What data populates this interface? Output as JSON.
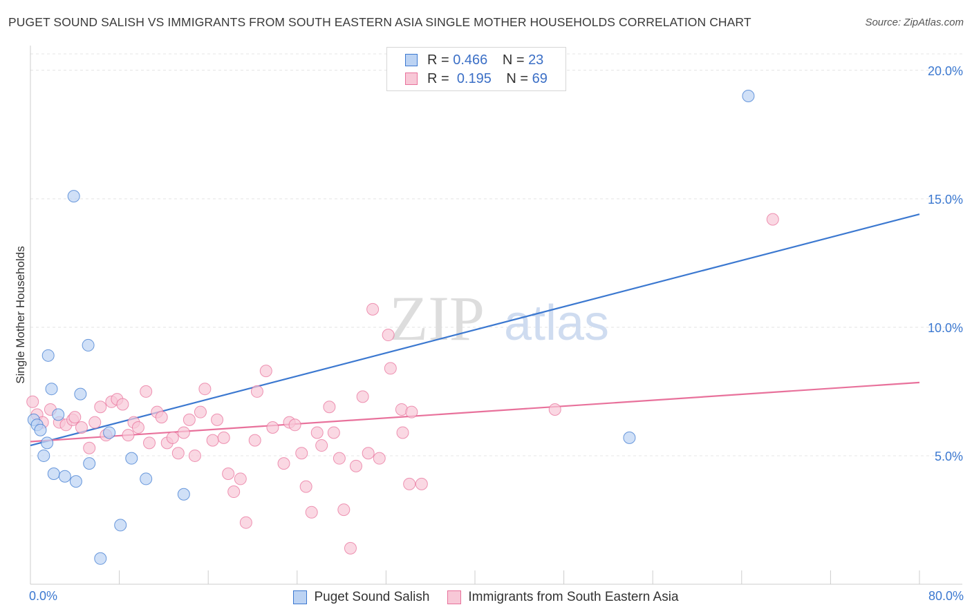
{
  "header": {
    "title": "PUGET SOUND SALISH VS IMMIGRANTS FROM SOUTH EASTERN ASIA SINGLE MOTHER HOUSEHOLDS CORRELATION CHART",
    "source": "Source: ZipAtlas.com"
  },
  "watermark": {
    "zip": "ZIP",
    "atlas": "atlas"
  },
  "legend": {
    "rows": [
      {
        "r_label": "R =",
        "r_value": "0.466",
        "n_label": "N =",
        "n_value": "23"
      },
      {
        "r_label": "R =",
        "r_value": "0.195",
        "n_label": "N =",
        "n_value": "69"
      }
    ]
  },
  "chart_data": {
    "type": "scatter",
    "title": "PUGET SOUND SALISH VS IMMIGRANTS FROM SOUTH EASTERN ASIA SINGLE MOTHER HOUSEHOLDS CORRELATION CHART",
    "xlabel": "",
    "ylabel": "Single Mother Households",
    "xlim": [
      0,
      80
    ],
    "ylim": [
      0,
      20.8
    ],
    "x_tick_labels": [
      "0.0%",
      "80.0%"
    ],
    "y_ticks": [
      5,
      10,
      15,
      20
    ],
    "y_tick_labels": [
      "5.0%",
      "10.0%",
      "15.0%",
      "20.0%"
    ],
    "grid": true,
    "legend_position": "top-center",
    "colors": {
      "blue": "#3b78d0",
      "pink": "#e8719b"
    },
    "series": [
      {
        "name": "Puget Sound Salish",
        "color": "#3b78d0",
        "fill": "#bcd3f3",
        "trend": {
          "x": [
            0,
            80
          ],
          "y": [
            5.4,
            14.4
          ]
        },
        "points": [
          {
            "x": 0.3,
            "y": 6.4
          },
          {
            "x": 0.6,
            "y": 6.2
          },
          {
            "x": 0.9,
            "y": 6.0
          },
          {
            "x": 1.2,
            "y": 5.0
          },
          {
            "x": 1.5,
            "y": 5.5
          },
          {
            "x": 1.6,
            "y": 8.9
          },
          {
            "x": 1.9,
            "y": 7.6
          },
          {
            "x": 2.1,
            "y": 4.3
          },
          {
            "x": 2.5,
            "y": 6.6
          },
          {
            "x": 3.1,
            "y": 4.2
          },
          {
            "x": 3.9,
            "y": 15.1
          },
          {
            "x": 4.1,
            "y": 4.0
          },
          {
            "x": 4.5,
            "y": 7.4
          },
          {
            "x": 5.2,
            "y": 9.3
          },
          {
            "x": 5.3,
            "y": 4.7
          },
          {
            "x": 6.3,
            "y": 1.0
          },
          {
            "x": 7.1,
            "y": 5.9
          },
          {
            "x": 8.1,
            "y": 2.3
          },
          {
            "x": 9.1,
            "y": 4.9
          },
          {
            "x": 10.4,
            "y": 4.1
          },
          {
            "x": 13.8,
            "y": 3.5
          },
          {
            "x": 53.9,
            "y": 5.7
          },
          {
            "x": 64.6,
            "y": 19.0
          }
        ]
      },
      {
        "name": "Immigrants from South Eastern Asia",
        "color": "#e8719b",
        "fill": "#f8c8d7",
        "trend": {
          "x": [
            0,
            80
          ],
          "y": [
            5.55,
            7.85
          ]
        },
        "points": [
          {
            "x": 0.2,
            "y": 7.1
          },
          {
            "x": 0.6,
            "y": 6.6
          },
          {
            "x": 1.1,
            "y": 6.3
          },
          {
            "x": 1.8,
            "y": 6.8
          },
          {
            "x": 2.6,
            "y": 6.3
          },
          {
            "x": 3.2,
            "y": 6.2
          },
          {
            "x": 3.8,
            "y": 6.4
          },
          {
            "x": 4.0,
            "y": 6.5
          },
          {
            "x": 4.6,
            "y": 6.1
          },
          {
            "x": 5.3,
            "y": 5.3
          },
          {
            "x": 5.8,
            "y": 6.3
          },
          {
            "x": 6.3,
            "y": 6.9
          },
          {
            "x": 6.8,
            "y": 5.8
          },
          {
            "x": 7.3,
            "y": 7.1
          },
          {
            "x": 7.8,
            "y": 7.2
          },
          {
            "x": 8.3,
            "y": 7.0
          },
          {
            "x": 8.8,
            "y": 5.8
          },
          {
            "x": 9.3,
            "y": 6.3
          },
          {
            "x": 9.7,
            "y": 6.1
          },
          {
            "x": 10.4,
            "y": 7.5
          },
          {
            "x": 10.7,
            "y": 5.5
          },
          {
            "x": 11.4,
            "y": 6.7
          },
          {
            "x": 11.8,
            "y": 6.5
          },
          {
            "x": 12.3,
            "y": 5.5
          },
          {
            "x": 12.8,
            "y": 5.7
          },
          {
            "x": 13.3,
            "y": 5.1
          },
          {
            "x": 13.8,
            "y": 5.9
          },
          {
            "x": 14.3,
            "y": 6.4
          },
          {
            "x": 14.8,
            "y": 5.0
          },
          {
            "x": 15.3,
            "y": 6.7
          },
          {
            "x": 15.7,
            "y": 7.6
          },
          {
            "x": 16.4,
            "y": 5.6
          },
          {
            "x": 16.8,
            "y": 6.4
          },
          {
            "x": 17.4,
            "y": 5.7
          },
          {
            "x": 17.8,
            "y": 4.3
          },
          {
            "x": 18.3,
            "y": 3.6
          },
          {
            "x": 18.9,
            "y": 4.1
          },
          {
            "x": 19.4,
            "y": 2.4
          },
          {
            "x": 20.2,
            "y": 5.6
          },
          {
            "x": 20.4,
            "y": 7.5
          },
          {
            "x": 21.2,
            "y": 8.3
          },
          {
            "x": 21.8,
            "y": 6.1
          },
          {
            "x": 22.8,
            "y": 4.7
          },
          {
            "x": 23.3,
            "y": 6.3
          },
          {
            "x": 23.8,
            "y": 6.2
          },
          {
            "x": 24.4,
            "y": 5.1
          },
          {
            "x": 24.8,
            "y": 3.8
          },
          {
            "x": 25.3,
            "y": 2.8
          },
          {
            "x": 25.8,
            "y": 5.9
          },
          {
            "x": 26.2,
            "y": 5.4
          },
          {
            "x": 26.9,
            "y": 6.9
          },
          {
            "x": 27.3,
            "y": 5.9
          },
          {
            "x": 27.8,
            "y": 4.9
          },
          {
            "x": 28.2,
            "y": 2.9
          },
          {
            "x": 29.3,
            "y": 4.6
          },
          {
            "x": 28.8,
            "y": 1.4
          },
          {
            "x": 29.9,
            "y": 7.3
          },
          {
            "x": 30.4,
            "y": 5.1
          },
          {
            "x": 31.4,
            "y": 4.9
          },
          {
            "x": 30.8,
            "y": 10.7
          },
          {
            "x": 32.2,
            "y": 9.7
          },
          {
            "x": 33.4,
            "y": 6.8
          },
          {
            "x": 34.3,
            "y": 6.7
          },
          {
            "x": 34.1,
            "y": 3.9
          },
          {
            "x": 35.2,
            "y": 3.9
          },
          {
            "x": 47.2,
            "y": 6.8
          },
          {
            "x": 66.8,
            "y": 14.2
          },
          {
            "x": 32.4,
            "y": 8.4
          },
          {
            "x": 33.5,
            "y": 5.9
          }
        ]
      }
    ]
  }
}
